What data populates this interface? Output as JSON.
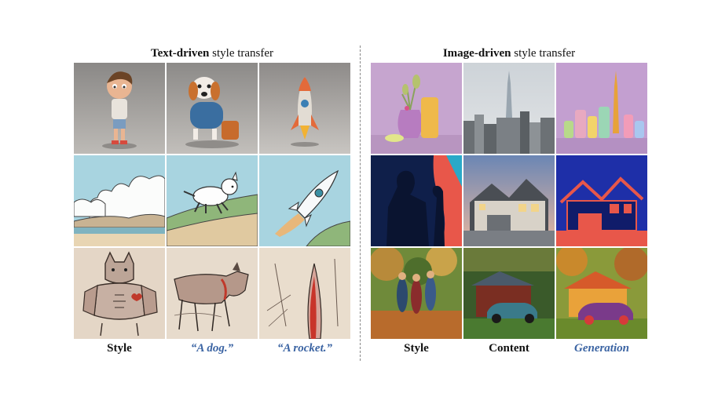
{
  "left_panel": {
    "title_bold": "Text-driven",
    "title_rest": " style transfer",
    "captions": [
      "Style",
      "“A dog.”",
      "“A rocket.”"
    ]
  },
  "right_panel": {
    "title_bold": "Image-driven",
    "title_rest": " style transfer",
    "captions": [
      "Style",
      "Content",
      "Generation"
    ]
  },
  "colors": {
    "caption_blue": "#3b64a3",
    "divider": "#888888"
  }
}
